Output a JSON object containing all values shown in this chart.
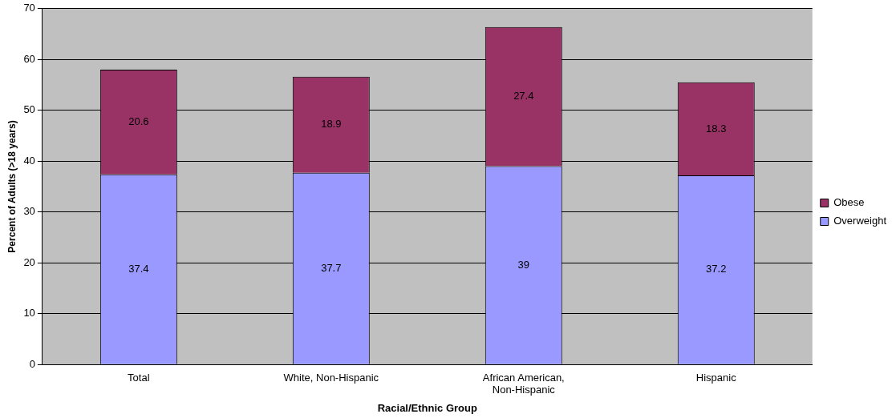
{
  "chart_data": {
    "type": "bar",
    "stacked": true,
    "xlabel": "Racial/Ethnic Group",
    "ylabel": "Percent of Adults (>18 years)",
    "categories": [
      "Total",
      "White, Non-Hispanic",
      "African American, Non-Hispanic",
      "Hispanic"
    ],
    "series": [
      {
        "name": "Overweight",
        "color": "#9999ff",
        "values": [
          37.4,
          37.7,
          39,
          37.2
        ]
      },
      {
        "name": "Obese",
        "color": "#993366",
        "values": [
          20.6,
          18.9,
          27.4,
          18.3
        ]
      }
    ],
    "ylim": [
      0,
      70
    ],
    "yticks": [
      0,
      10,
      20,
      30,
      40,
      50,
      60,
      70
    ],
    "grid": "y",
    "legend": "right",
    "data_labels": true
  }
}
